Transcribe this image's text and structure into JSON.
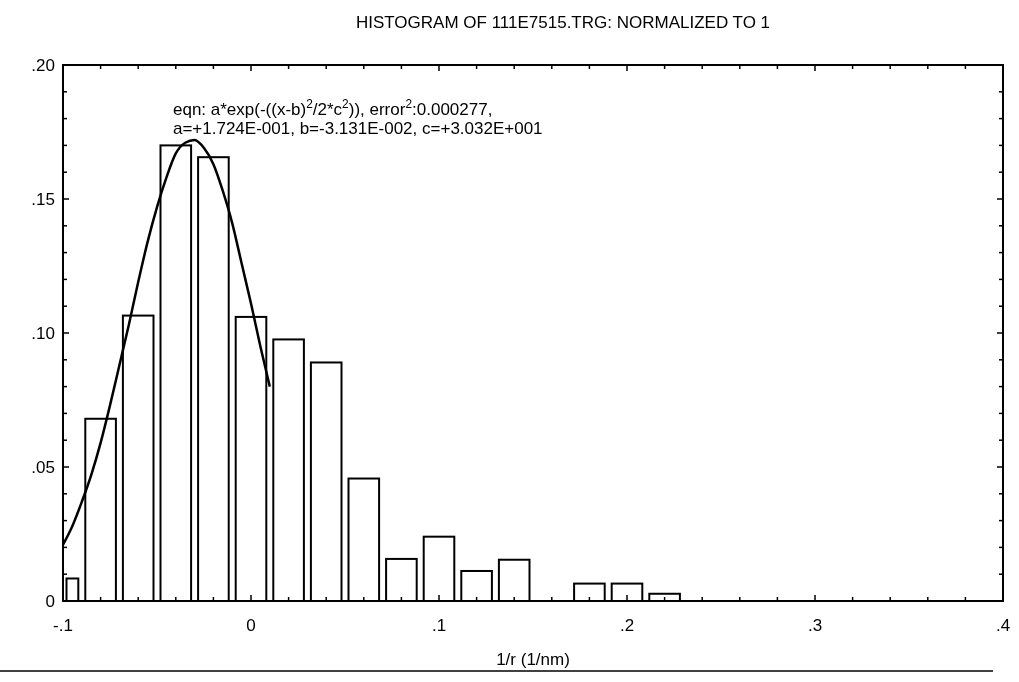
{
  "chart_data": {
    "type": "histogram",
    "title": "HISTOGRAM OF 111E7515.TRG: NORMALIZED TO 1",
    "xlabel": "1/r (1/nm)",
    "bins": [
      -0.1,
      -0.09,
      -0.07,
      -0.05,
      -0.03,
      -0.01,
      0.01,
      0.03,
      0.05,
      0.07,
      0.09,
      0.11,
      0.13,
      0.15,
      0.17,
      0.19,
      0.21,
      0.23
    ],
    "values": [
      0.0084,
      0.068,
      0.1065,
      0.17,
      0.1656,
      0.106,
      0.0976,
      0.089,
      0.0457,
      0.0157,
      0.024,
      0.0112,
      0.0154,
      0,
      0.0065,
      0.0065,
      0.0027
    ],
    "color": "#ffffff",
    "series": [
      {
        "type": "line",
        "color": "#000000",
        "x": [
          -0.1,
          -0.095,
          -0.09,
          -0.085,
          -0.08,
          -0.075,
          -0.07,
          -0.065,
          -0.06,
          -0.055,
          -0.05,
          -0.045,
          -0.04,
          -0.035,
          -0.03,
          -0.025,
          -0.02,
          -0.015,
          -0.01,
          -0.005,
          0,
          0.005,
          0.01
        ],
        "values": [
          0.021,
          0.028,
          0.037,
          0.047,
          0.059,
          0.073,
          0.088,
          0.103,
          0.119,
          0.134,
          0.147,
          0.158,
          0.167,
          0.171,
          0.172,
          0.169,
          0.163,
          0.153,
          0.141,
          0.126,
          0.111,
          0.095,
          0.08
        ]
      }
    ],
    "xlim": [
      -0.1,
      0.4
    ],
    "ylim": [
      0,
      0.2
    ],
    "xticks": [
      {
        "value": -0.1,
        "label": "-.1"
      },
      {
        "value": -0.08,
        "label": null
      },
      {
        "value": -0.06,
        "label": null
      },
      {
        "value": -0.04,
        "label": null
      },
      {
        "value": -0.02,
        "label": null
      },
      0,
      {
        "value": 0.02,
        "label": null
      },
      {
        "value": 0.04,
        "label": null
      },
      {
        "value": 0.06,
        "label": null
      },
      {
        "value": 0.08,
        "label": null
      },
      {
        "value": 0.1,
        "label": ".1"
      },
      {
        "value": 0.12,
        "label": null
      },
      {
        "value": 0.14,
        "label": null
      },
      {
        "value": 0.16,
        "label": null
      },
      {
        "value": 0.18,
        "label": null
      },
      {
        "value": 0.2,
        "label": ".2"
      },
      {
        "value": 0.22,
        "label": null
      },
      {
        "value": 0.24,
        "label": null
      },
      {
        "value": 0.26,
        "label": null
      },
      {
        "value": 0.28,
        "label": null
      },
      {
        "value": 0.3,
        "label": ".3"
      },
      {
        "value": 0.32,
        "label": null
      },
      {
        "value": 0.34,
        "label": null
      },
      {
        "value": 0.36,
        "label": null
      },
      {
        "value": 0.38,
        "label": null
      },
      {
        "value": 0.4,
        "label": ".4"
      }
    ],
    "yticks": [
      0,
      {
        "value": 0.01,
        "label": null
      },
      {
        "value": 0.02,
        "label": null
      },
      {
        "value": 0.03,
        "label": null
      },
      {
        "value": 0.04,
        "label": null
      },
      {
        "value": 0.05,
        "label": ".05"
      },
      {
        "value": 0.06,
        "label": null
      },
      {
        "value": 0.07,
        "label": null
      },
      {
        "value": 0.08,
        "label": null
      },
      {
        "value": 0.09,
        "label": null
      },
      {
        "value": 0.1,
        "label": ".10"
      },
      {
        "value": 0.11,
        "label": null
      },
      {
        "value": 0.12,
        "label": null
      },
      {
        "value": 0.13,
        "label": null
      },
      {
        "value": 0.14,
        "label": null
      },
      {
        "value": 0.15,
        "label": ".15"
      },
      {
        "value": 0.16,
        "label": null
      },
      {
        "value": 0.17,
        "label": null
      },
      {
        "value": 0.18,
        "label": null
      },
      {
        "value": 0.19,
        "label": null
      },
      {
        "value": 0.2,
        "label": ".20"
      }
    ],
    "annotations": [
      "eqn: a*exp(-((x-b)$^{2}$/2*c$^{2}$)), error$^{2}$:0.000277,",
      "a=+1.724E-001, b=-3.131E-002, c=+3.032E+001"
    ],
    "grid": false
  }
}
